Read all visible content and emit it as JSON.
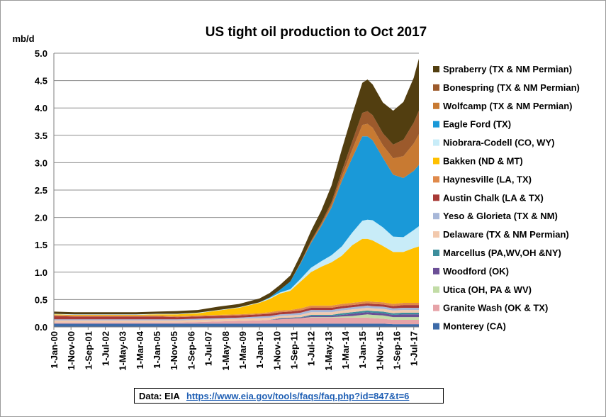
{
  "colors": {
    "background": "#ffffff",
    "gridline": "#8c8c8c",
    "url": "#1f5fb4"
  },
  "source": {
    "label": "Data: EIA",
    "url": "https://www.eia.gov/tools/faqs/faq.php?id=847&t=6"
  },
  "chart_data": {
    "type": "area",
    "stacked": true,
    "title": "US tight oil production to Oct 2017",
    "ylabel": "mb/d",
    "xlabel": "",
    "ylim": [
      0,
      5.0
    ],
    "y_ticks": [
      "0.0",
      "0.5",
      "1.0",
      "1.5",
      "2.0",
      "2.5",
      "3.0",
      "3.5",
      "4.0",
      "4.5",
      "5.0"
    ],
    "x_ticks": [
      "1-Jan-00",
      "1-Nov-00",
      "1-Sep-01",
      "1-Jul-02",
      "1-May-03",
      "1-Mar-04",
      "1-Jan-05",
      "1-Nov-05",
      "1-Sep-06",
      "1-Jul-07",
      "1-May-08",
      "1-Mar-09",
      "1-Jan-10",
      "1-Nov-10",
      "1-Sep-11",
      "1-Jul-12",
      "1-May-13",
      "1-Mar-14",
      "1-Jan-15",
      "1-Nov-15",
      "1-Sep-16",
      "1-Jul-17"
    ],
    "x": [
      "2000-01",
      "2001-01",
      "2002-01",
      "2003-01",
      "2004-01",
      "2005-01",
      "2006-01",
      "2007-01",
      "2008-01",
      "2009-01",
      "2010-01",
      "2010-07",
      "2011-01",
      "2011-07",
      "2012-01",
      "2012-07",
      "2013-01",
      "2013-07",
      "2014-01",
      "2014-07",
      "2015-01",
      "2015-04",
      "2015-07",
      "2016-01",
      "2016-07",
      "2017-01",
      "2017-07",
      "2017-10"
    ],
    "grid": true,
    "legend_position": "right",
    "series": [
      {
        "name": "Monterey (CA)",
        "color": "#3c6aa8",
        "values": [
          0.06,
          0.06,
          0.06,
          0.06,
          0.06,
          0.06,
          0.06,
          0.06,
          0.06,
          0.06,
          0.06,
          0.06,
          0.06,
          0.06,
          0.06,
          0.06,
          0.06,
          0.06,
          0.06,
          0.06,
          0.06,
          0.06,
          0.06,
          0.06,
          0.05,
          0.05,
          0.05,
          0.05
        ]
      },
      {
        "name": "Granite Wash (OK & TX)",
        "color": "#e6a3a8",
        "values": [
          0.02,
          0.02,
          0.02,
          0.02,
          0.02,
          0.02,
          0.02,
          0.03,
          0.04,
          0.05,
          0.06,
          0.07,
          0.08,
          0.09,
          0.1,
          0.11,
          0.11,
          0.11,
          0.11,
          0.11,
          0.11,
          0.11,
          0.1,
          0.09,
          0.08,
          0.08,
          0.08,
          0.08
        ]
      },
      {
        "name": "Utica (OH, PA & WV)",
        "color": "#c2dca6",
        "values": [
          0,
          0,
          0,
          0,
          0,
          0,
          0,
          0,
          0,
          0,
          0,
          0,
          0,
          0,
          0,
          0.01,
          0.01,
          0.01,
          0.02,
          0.03,
          0.05,
          0.06,
          0.06,
          0.06,
          0.05,
          0.05,
          0.05,
          0.05
        ]
      },
      {
        "name": "Woodford (OK)",
        "color": "#6b4f96",
        "values": [
          0,
          0,
          0,
          0,
          0,
          0,
          0,
          0,
          0,
          0,
          0,
          0,
          0.01,
          0.01,
          0.01,
          0.02,
          0.02,
          0.02,
          0.03,
          0.04,
          0.04,
          0.04,
          0.04,
          0.04,
          0.04,
          0.05,
          0.05,
          0.05
        ]
      },
      {
        "name": "Marcellus (PA,WV,OH &NY)",
        "color": "#3c8e9c",
        "values": [
          0,
          0,
          0,
          0,
          0,
          0,
          0,
          0,
          0,
          0,
          0,
          0,
          0.01,
          0.01,
          0.01,
          0.02,
          0.02,
          0.02,
          0.03,
          0.03,
          0.03,
          0.03,
          0.03,
          0.03,
          0.03,
          0.03,
          0.03,
          0.03
        ]
      },
      {
        "name": "Delaware (TX & NM Permian)",
        "color": "#f2c9ad",
        "values": [
          0.04,
          0.04,
          0.04,
          0.04,
          0.04,
          0.04,
          0.04,
          0.04,
          0.04,
          0.04,
          0.04,
          0.04,
          0.04,
          0.04,
          0.04,
          0.05,
          0.05,
          0.05,
          0.05,
          0.05,
          0.05,
          0.05,
          0.05,
          0.05,
          0.05,
          0.05,
          0.05,
          0.05
        ]
      },
      {
        "name": "Yeso & Glorieta (TX & NM)",
        "color": "#a7b7d8",
        "values": [
          0.02,
          0.02,
          0.02,
          0.02,
          0.02,
          0.02,
          0.02,
          0.02,
          0.02,
          0.02,
          0.03,
          0.03,
          0.03,
          0.03,
          0.04,
          0.04,
          0.04,
          0.04,
          0.04,
          0.04,
          0.04,
          0.04,
          0.04,
          0.04,
          0.04,
          0.04,
          0.04,
          0.04
        ]
      },
      {
        "name": "Austin Chalk (LA & TX)",
        "color": "#a83a36",
        "values": [
          0.06,
          0.05,
          0.05,
          0.05,
          0.05,
          0.05,
          0.04,
          0.04,
          0.04,
          0.04,
          0.04,
          0.04,
          0.04,
          0.04,
          0.04,
          0.04,
          0.04,
          0.04,
          0.04,
          0.04,
          0.04,
          0.04,
          0.04,
          0.04,
          0.04,
          0.05,
          0.05,
          0.05
        ]
      },
      {
        "name": "Haynesville (LA, TX)",
        "color": "#e08a4b",
        "values": [
          0.02,
          0.02,
          0.02,
          0.02,
          0.02,
          0.02,
          0.02,
          0.02,
          0.02,
          0.02,
          0.02,
          0.03,
          0.03,
          0.03,
          0.04,
          0.04,
          0.04,
          0.04,
          0.04,
          0.04,
          0.04,
          0.04,
          0.04,
          0.04,
          0.04,
          0.04,
          0.04,
          0.04
        ]
      },
      {
        "name": "Bakken (ND & MT)",
        "color": "#ffc000",
        "values": [
          0.01,
          0.01,
          0.01,
          0.01,
          0.01,
          0.02,
          0.03,
          0.04,
          0.08,
          0.12,
          0.19,
          0.24,
          0.31,
          0.35,
          0.49,
          0.61,
          0.71,
          0.79,
          0.88,
          1.05,
          1.15,
          1.14,
          1.12,
          1.03,
          0.95,
          0.93,
          1.0,
          1.03
        ]
      },
      {
        "name": "Niobrara-Codell (CO, WY)",
        "color": "#c8ecf8",
        "values": [
          0.01,
          0.01,
          0.01,
          0.01,
          0.01,
          0.01,
          0.01,
          0.01,
          0.01,
          0.01,
          0.01,
          0.02,
          0.02,
          0.03,
          0.05,
          0.08,
          0.1,
          0.13,
          0.17,
          0.23,
          0.33,
          0.35,
          0.37,
          0.34,
          0.28,
          0.27,
          0.33,
          0.37
        ]
      },
      {
        "name": "Eagle Ford (TX)",
        "color": "#1a99d8",
        "values": [
          0,
          0,
          0,
          0,
          0,
          0,
          0,
          0,
          0,
          0,
          0,
          0.01,
          0.05,
          0.14,
          0.28,
          0.45,
          0.64,
          0.87,
          1.19,
          1.36,
          1.54,
          1.52,
          1.46,
          1.27,
          1.13,
          1.08,
          1.08,
          1.12
        ]
      },
      {
        "name": "Wolfcamp (TX & NM Permian)",
        "color": "#c87a32",
        "values": [
          0,
          0,
          0,
          0,
          0,
          0,
          0,
          0,
          0,
          0,
          0,
          0,
          0,
          0,
          0.01,
          0.02,
          0.03,
          0.05,
          0.09,
          0.15,
          0.21,
          0.23,
          0.23,
          0.23,
          0.3,
          0.4,
          0.5,
          0.56
        ]
      },
      {
        "name": "Bonespring (TX & NM Permian)",
        "color": "#9c5a2c",
        "values": [
          0,
          0,
          0,
          0,
          0,
          0,
          0,
          0,
          0,
          0,
          0,
          0,
          0,
          0,
          0.01,
          0.02,
          0.03,
          0.05,
          0.09,
          0.15,
          0.22,
          0.23,
          0.23,
          0.22,
          0.25,
          0.3,
          0.38,
          0.43
        ]
      },
      {
        "name": "Spraberry (TX & NM Permian)",
        "color": "#523e10",
        "values": [
          0.04,
          0.04,
          0.04,
          0.04,
          0.04,
          0.04,
          0.05,
          0.05,
          0.06,
          0.06,
          0.07,
          0.08,
          0.09,
          0.11,
          0.14,
          0.18,
          0.22,
          0.3,
          0.4,
          0.49,
          0.55,
          0.58,
          0.56,
          0.56,
          0.62,
          0.69,
          0.82,
          0.95
        ]
      }
    ]
  }
}
